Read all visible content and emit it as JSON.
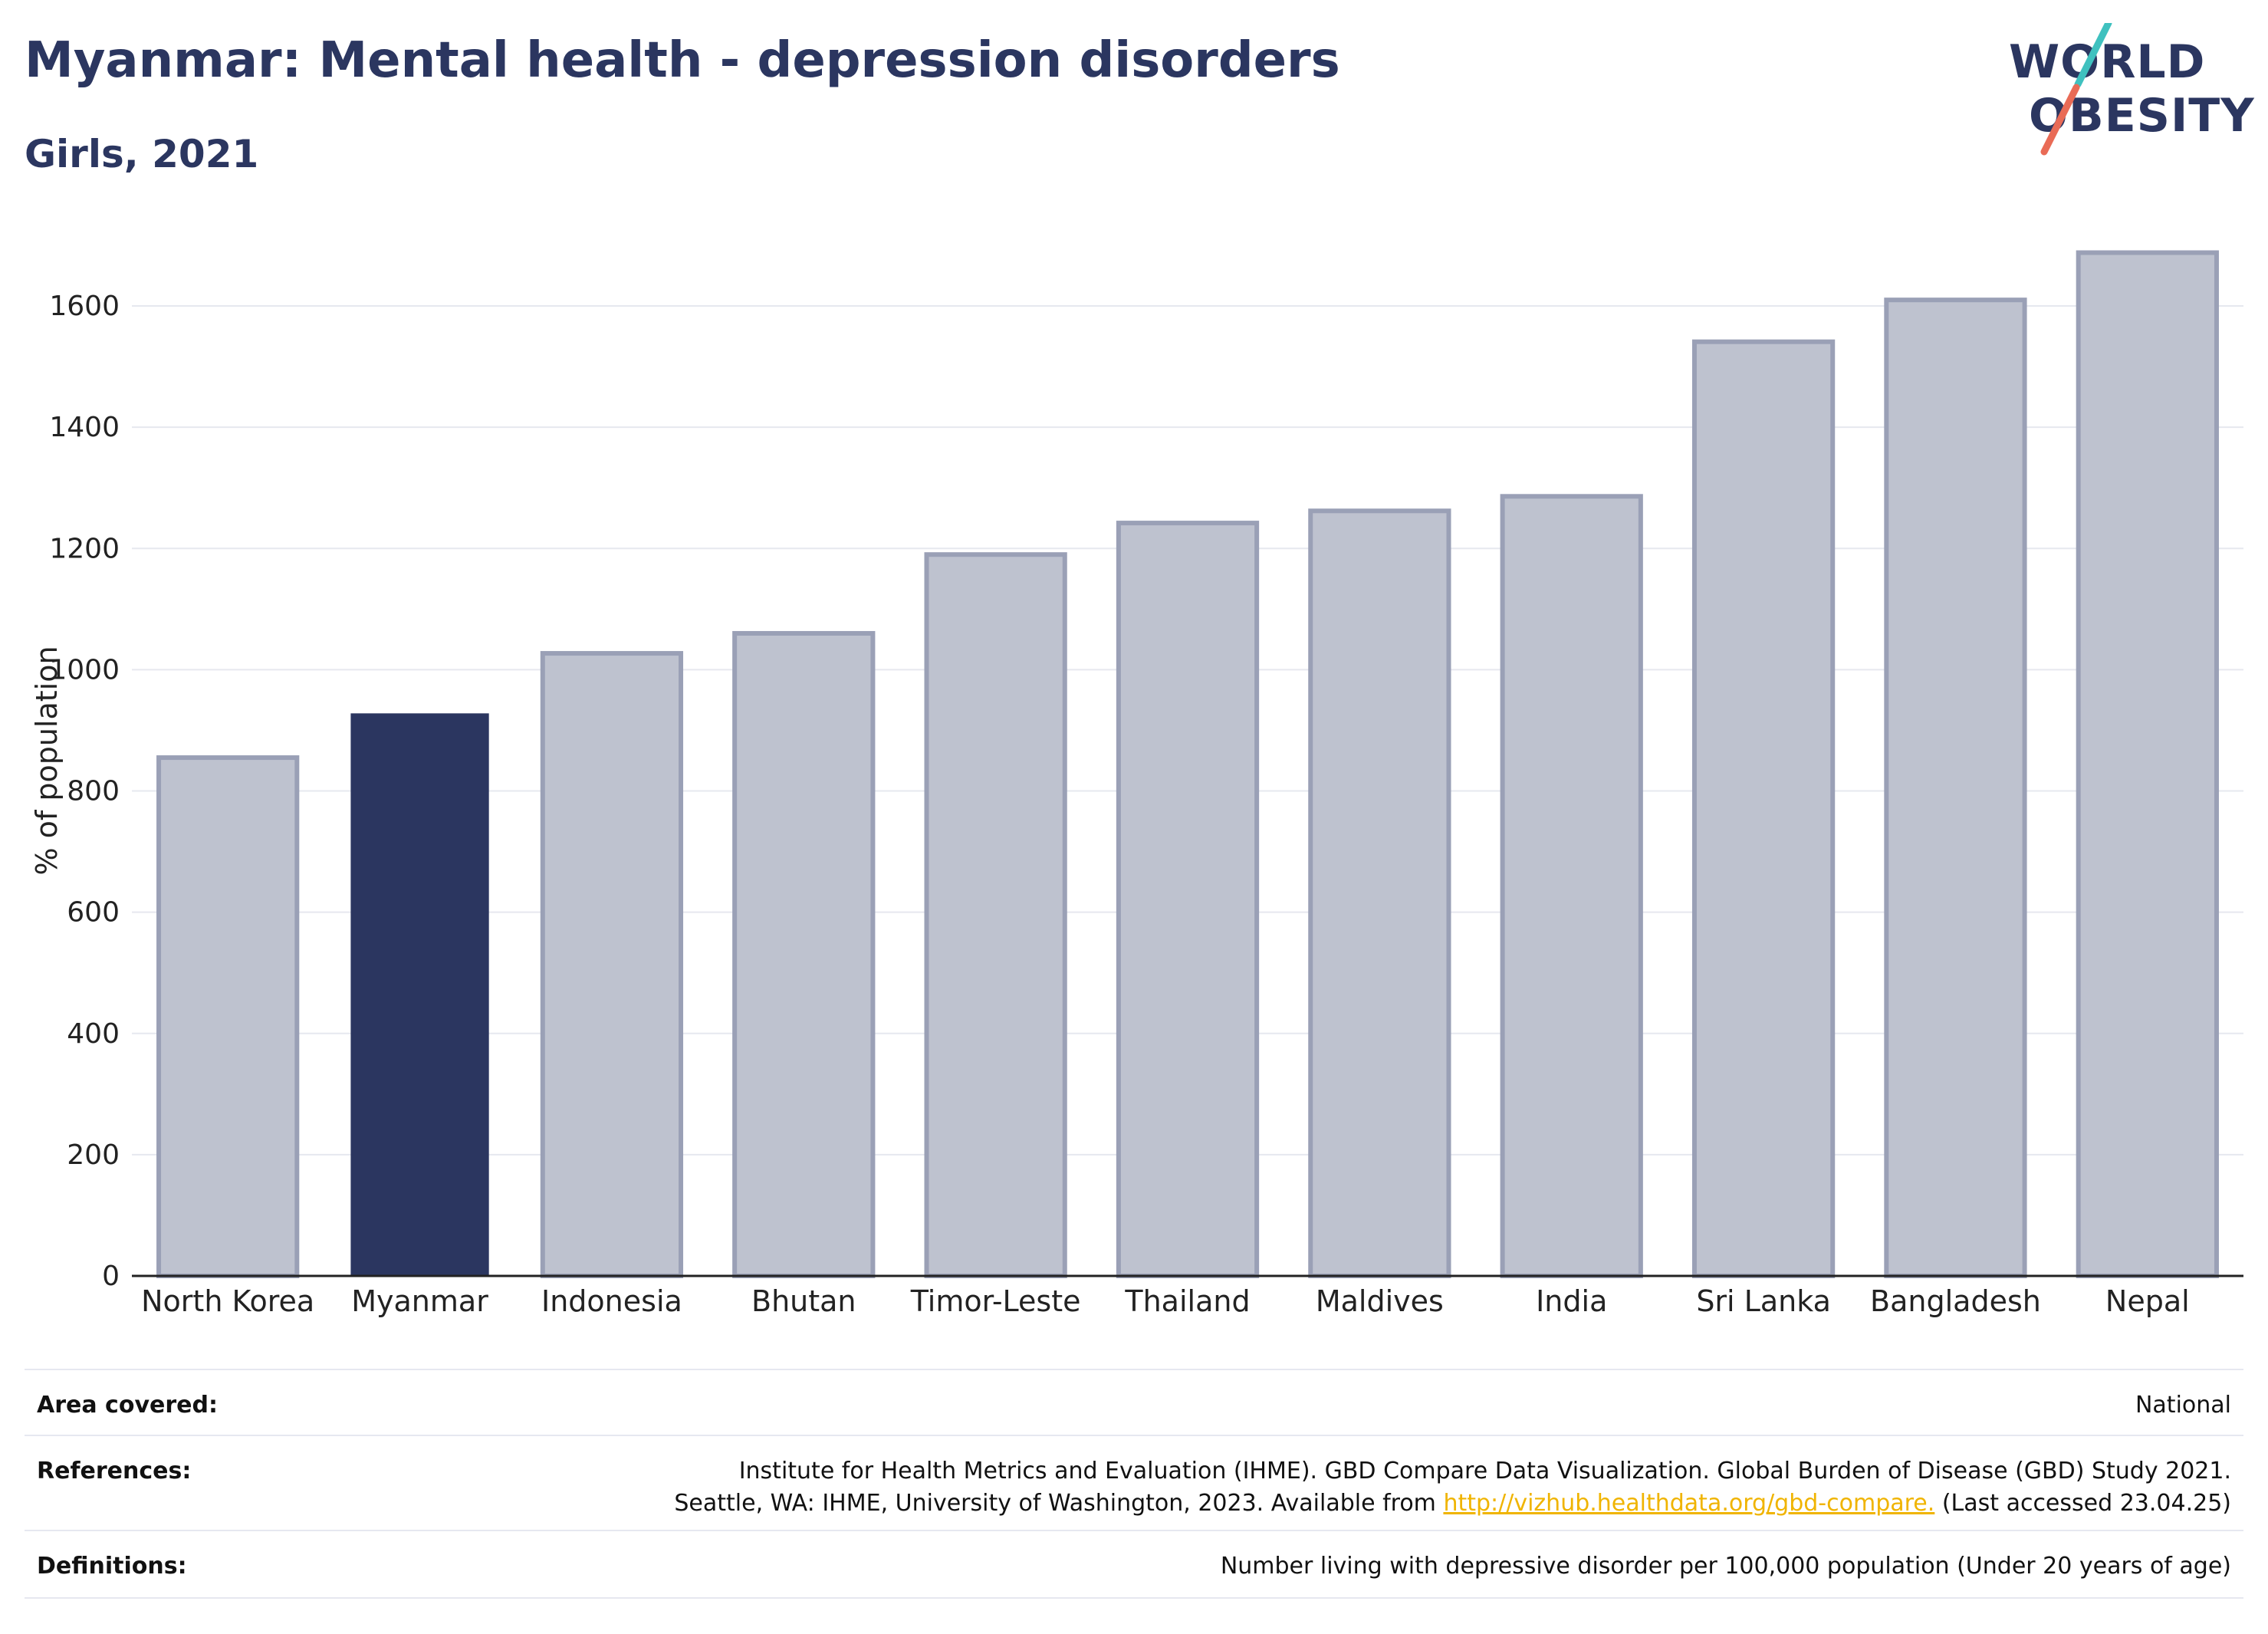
{
  "header": {
    "title": "Myanmar: Mental health - depression disorders",
    "subtitle": "Girls, 2021"
  },
  "logo": {
    "line1": "WORLD",
    "line2": "OBESITY"
  },
  "chart_data": {
    "type": "bar",
    "categories": [
      "North Korea",
      "Myanmar",
      "Indonesia",
      "Bhutan",
      "Timor-Leste",
      "Thailand",
      "Maldives",
      "India",
      "Sri Lanka",
      "Bangladesh",
      "Nepal"
    ],
    "values": [
      855,
      928,
      1027,
      1060,
      1190,
      1242,
      1262,
      1286,
      1541,
      1610,
      1688
    ],
    "highlight": "Myanmar",
    "ylabel": "% of population",
    "ylim": [
      0,
      1700
    ],
    "yticks": [
      0,
      200,
      400,
      600,
      800,
      1000,
      1200,
      1400,
      1600
    ],
    "grid": true,
    "colors": {
      "highlight": "#2b3660",
      "other_fill": "#bec2cf",
      "other_stroke": "#9aa0b6",
      "grid": "#e6e8ef",
      "axis": "#222222"
    }
  },
  "footer": {
    "area_label": "Area covered:",
    "area_value": "National",
    "references_label": "References:",
    "references_line1": "Institute for Health Metrics and Evaluation (IHME). GBD Compare Data Visualization. Global Burden of Disease (GBD) Study 2021.",
    "references_line2_pre": "Seattle, WA: IHME, University of Washington, 2023. Available from ",
    "references_link": "http://vizhub.healthdata.org/gbd-compare.",
    "references_line2_post": " (Last accessed 23.04.25)",
    "definitions_label": "Definitions:",
    "definitions_value": "Number living with depressive disorder per 100,000 population (Under 20 years of age)"
  }
}
